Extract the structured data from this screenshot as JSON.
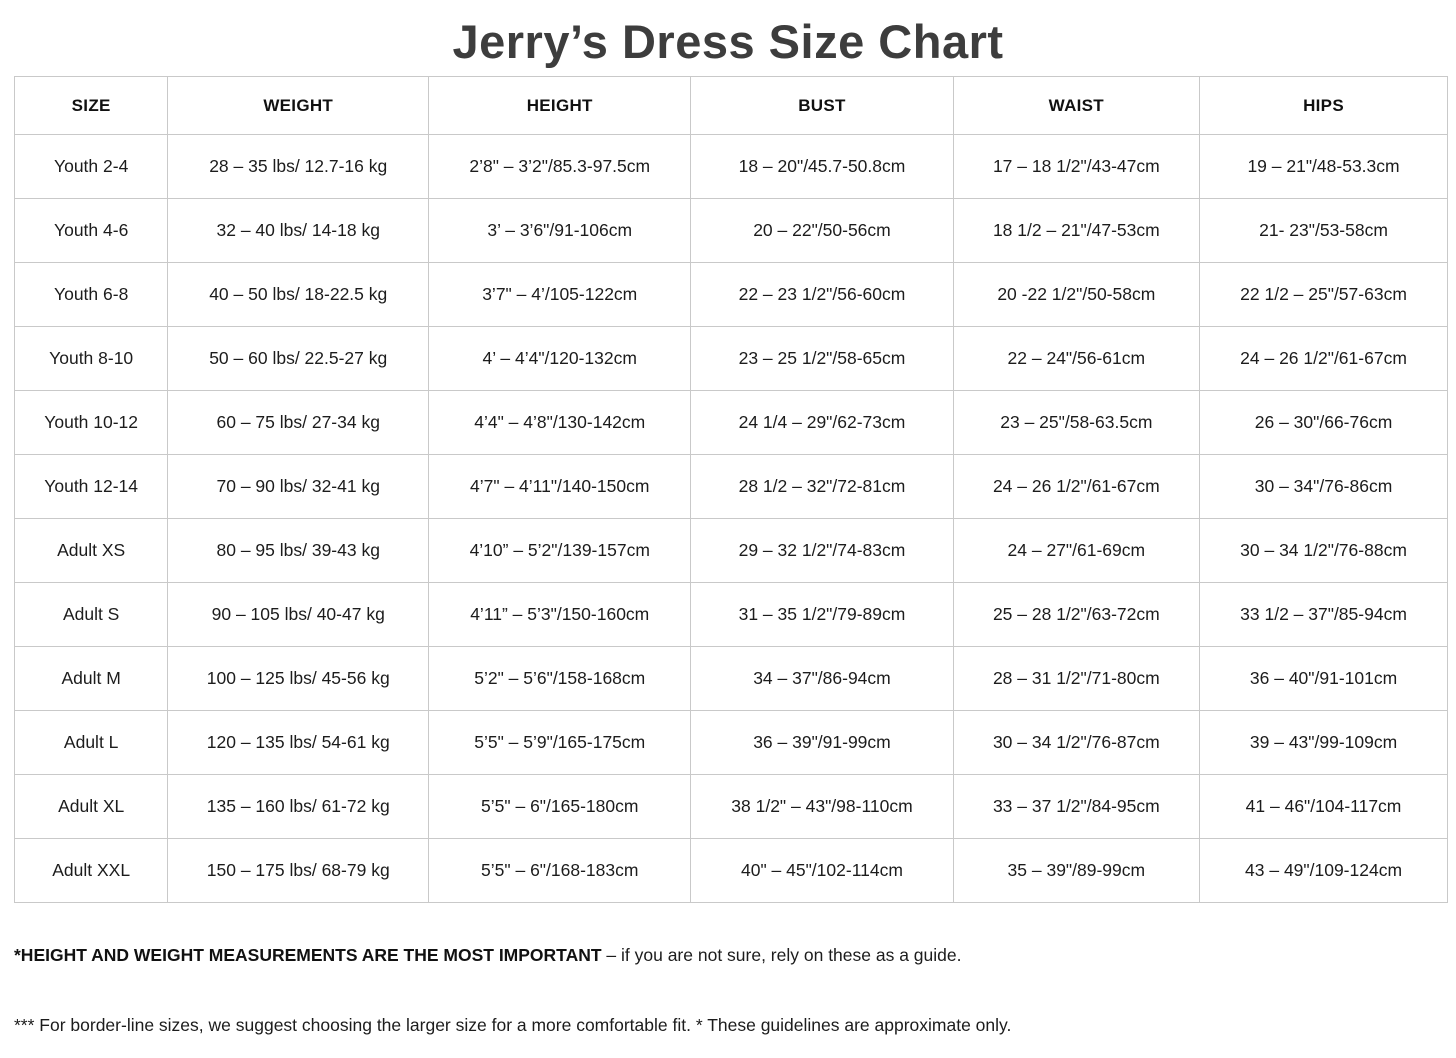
{
  "title": "Jerry’s Dress Size Chart",
  "colors": {
    "background": "#ffffff",
    "title_text": "#3d3d3d",
    "body_text": "#1c1c1c",
    "table_border": "#c9c9c9"
  },
  "table": {
    "columns": [
      "SIZE",
      "WEIGHT",
      "HEIGHT",
      "BUST",
      "WAIST",
      "HIPS"
    ],
    "column_widths_pct": [
      10.7,
      18.2,
      18.3,
      18.3,
      17.2,
      17.3
    ],
    "rows": [
      [
        "Youth 2-4",
        "28 – 35 lbs/ 12.7-16 kg",
        "2’8\" – 3’2\"/85.3-97.5cm",
        "18 – 20\"/45.7-50.8cm",
        "17 – 18 1/2\"/43-47cm",
        "19 – 21\"/48-53.3cm"
      ],
      [
        "Youth 4-6",
        "32 – 40 lbs/ 14-18 kg",
        "3’ – 3’6\"/91-106cm",
        "20 – 22\"/50-56cm",
        "18 1/2 – 21\"/47-53cm",
        "21- 23\"/53-58cm"
      ],
      [
        "Youth 6-8",
        "40 – 50 lbs/ 18-22.5 kg",
        "3’7\" – 4’/105-122cm",
        "22 – 23 1/2\"/56-60cm",
        "20 -22 1/2\"/50-58cm",
        "22 1/2 – 25\"/57-63cm"
      ],
      [
        "Youth 8-10",
        "50 – 60 lbs/ 22.5-27 kg",
        "4’ – 4’4\"/120-132cm",
        "23 – 25 1/2\"/58-65cm",
        "22 – 24\"/56-61cm",
        "24 – 26 1/2\"/61-67cm"
      ],
      [
        "Youth 10-12",
        "60 – 75 lbs/ 27-34 kg",
        "4’4\" – 4’8\"/130-142cm",
        "24 1/4 – 29\"/62-73cm",
        "23 – 25\"/58-63.5cm",
        "26 – 30\"/66-76cm"
      ],
      [
        "Youth 12-14",
        "70 – 90 lbs/ 32-41 kg",
        "4’7\" – 4’11\"/140-150cm",
        "28 1/2 – 32\"/72-81cm",
        "24 – 26 1/2\"/61-67cm",
        "30 – 34\"/76-86cm"
      ],
      [
        "Adult XS",
        "80 – 95 lbs/ 39-43 kg",
        "4’10” – 5’2\"/139-157cm",
        "29 – 32 1/2\"/74-83cm",
        "24 – 27\"/61-69cm",
        "30 – 34 1/2\"/76-88cm"
      ],
      [
        "Adult S",
        "90 – 105 lbs/ 40-47 kg",
        "4’11” – 5’3\"/150-160cm",
        "31 – 35 1/2\"/79-89cm",
        "25 – 28 1/2\"/63-72cm",
        "33 1/2 – 37\"/85-94cm"
      ],
      [
        "Adult M",
        "100 – 125 lbs/ 45-56 kg",
        "5’2\" – 5’6\"/158-168cm",
        "34 – 37\"/86-94cm",
        "28 – 31 1/2\"/71-80cm",
        "36 – 40\"/91-101cm"
      ],
      [
        "Adult L",
        "120 – 135 lbs/ 54-61 kg",
        "5’5\" – 5’9\"/165-175cm",
        "36 – 39\"/91-99cm",
        "30 – 34 1/2\"/76-87cm",
        "39 – 43\"/99-109cm"
      ],
      [
        "Adult XL",
        "135 – 160 lbs/ 61-72 kg",
        "5’5\" – 6\"/165-180cm",
        "38 1/2\" – 43\"/98-110cm",
        "33 – 37 1/2\"/84-95cm",
        "41 – 46\"/104-117cm"
      ],
      [
        "Adult XXL",
        "150 – 175 lbs/ 68-79 kg",
        "5’5\" – 6\"/168-183cm",
        "40\" – 45\"/102-114cm",
        "35 – 39\"/89-99cm",
        "43 – 49\"/109-124cm"
      ]
    ]
  },
  "footnotes": {
    "note1_bold": "*HEIGHT AND WEIGHT MEASUREMENTS ARE THE MOST IMPORTANT",
    "note1_rest": " – if you are not sure, rely on these as a guide.",
    "note2": "*** For border-line sizes, we suggest choosing the larger size for a more comfortable fit. * These guidelines are approximate only."
  }
}
